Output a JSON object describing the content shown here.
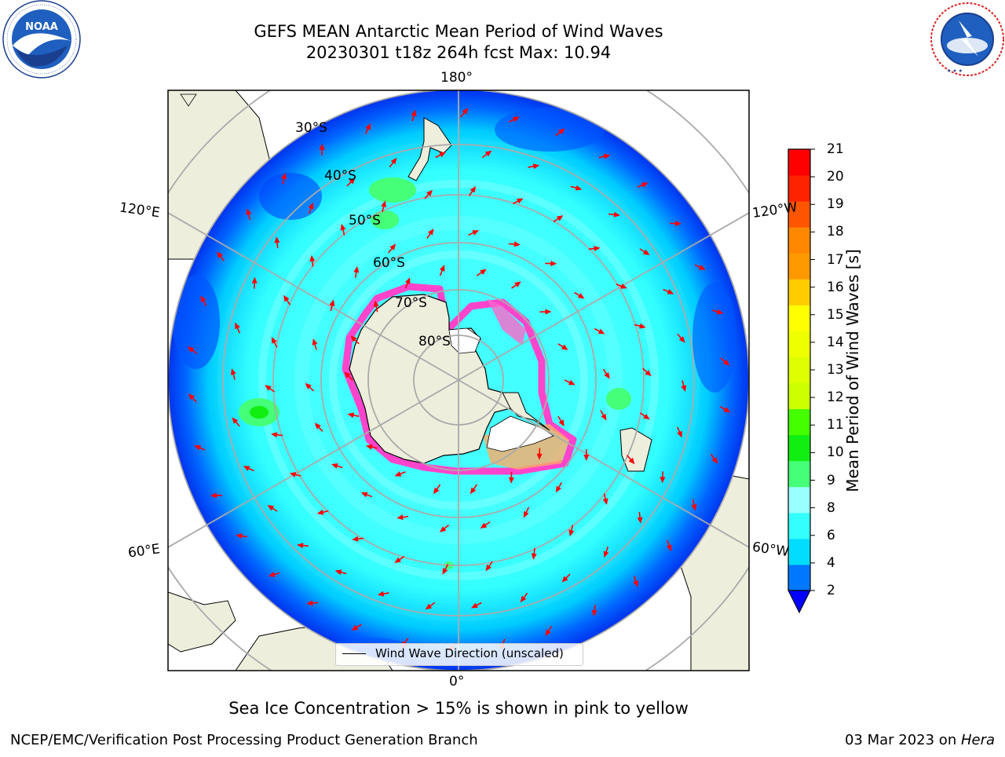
{
  "header": {
    "title_line1": "GEFS MEAN Antarctic Mean Period of Wind Waves",
    "title_line2": "20230301 t18z 264h fcst   Max: 10.94"
  },
  "logos": {
    "left": {
      "name": "noaa-logo",
      "text": "NOAA",
      "ring_text": "NATIONAL OCEANIC AND ATMOSPHERIC ADMINISTRATION · U.S. DEPARTMENT OF COMMERCE"
    },
    "right": {
      "name": "nws-logo",
      "ring_text": "NATIONAL WEATHER SERVICE"
    }
  },
  "map": {
    "projection": "south-polar-stereographic",
    "longitude_labels": [
      "180°",
      "120°E",
      "120°W",
      "60°E",
      "60°W",
      "0°"
    ],
    "latitude_labels": [
      "30°S",
      "40°S",
      "50°S",
      "60°S",
      "70°S",
      "80°S"
    ],
    "ocean_color": "#33ffff",
    "land_color": "#eeeedd",
    "ice_color": "#ff44cc",
    "arrow_color": "#ff0000",
    "legend": "Wind Wave Direction (unscaled)"
  },
  "colorbar": {
    "label": "Mean Period of Wind Waves [s]",
    "ticks": [
      "21",
      "20",
      "19",
      "18",
      "17",
      "16",
      "15",
      "14",
      "13",
      "12",
      "11",
      "10",
      "9",
      "8",
      "6",
      "4",
      "2"
    ],
    "colors_bottom_to_top": [
      "#0077ff",
      "#00ddff",
      "#33ffff",
      "#99ffff",
      "#44ff77",
      "#11ee11",
      "#44ff00",
      "#ccff00",
      "#ddff00",
      "#eeff00",
      "#ffff00",
      "#ffcc00",
      "#ff9900",
      "#ff8800",
      "#ff5500",
      "#ff2200",
      "#ff0000"
    ],
    "under_color": "#0000ff"
  },
  "subtitle": "Sea Ice Concentration > 15% is shown in pink to yellow",
  "footer": {
    "left": "NCEP/EMC/Verification Post Processing Product Generation Branch",
    "right_prefix": "03 Mar 2023 on ",
    "right_italic": "Hera"
  }
}
